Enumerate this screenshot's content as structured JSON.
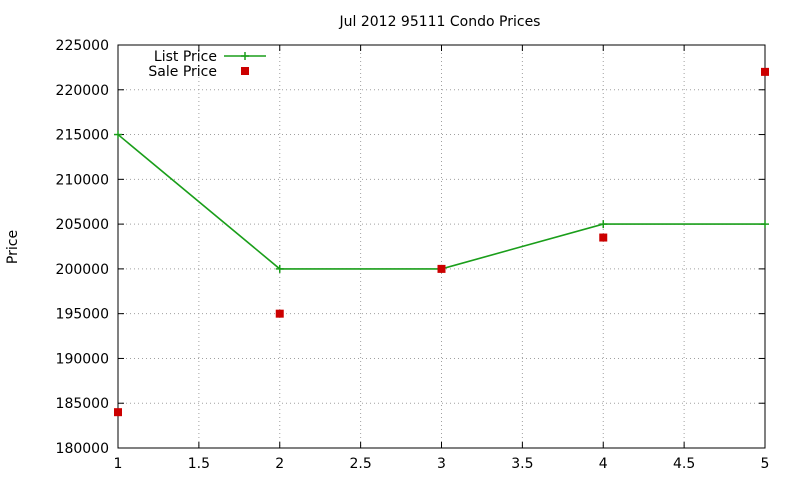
{
  "chart_data": {
    "type": "line",
    "title": "Jul 2012 95111 Condo Prices",
    "xlabel": "",
    "ylabel": "Price",
    "xlim": [
      1,
      5
    ],
    "ylim": [
      180000,
      225000
    ],
    "xticks": [
      1,
      1.5,
      2,
      2.5,
      3,
      3.5,
      4,
      4.5,
      5
    ],
    "yticks": [
      180000,
      185000,
      190000,
      195000,
      200000,
      205000,
      210000,
      215000,
      220000,
      225000
    ],
    "grid": true,
    "legend_position": "top-left",
    "series": [
      {
        "name": "List Price",
        "style": "line-with-plus",
        "color": "#1a9e1a",
        "x": [
          1,
          2,
          3,
          4,
          5
        ],
        "y": [
          215000,
          200000,
          200000,
          205000,
          205000
        ]
      },
      {
        "name": "Sale Price",
        "style": "square-markers",
        "color": "#cc0000",
        "x": [
          1,
          2,
          3,
          4,
          5
        ],
        "y": [
          184000,
          195000,
          200000,
          203500,
          222000
        ]
      }
    ]
  }
}
